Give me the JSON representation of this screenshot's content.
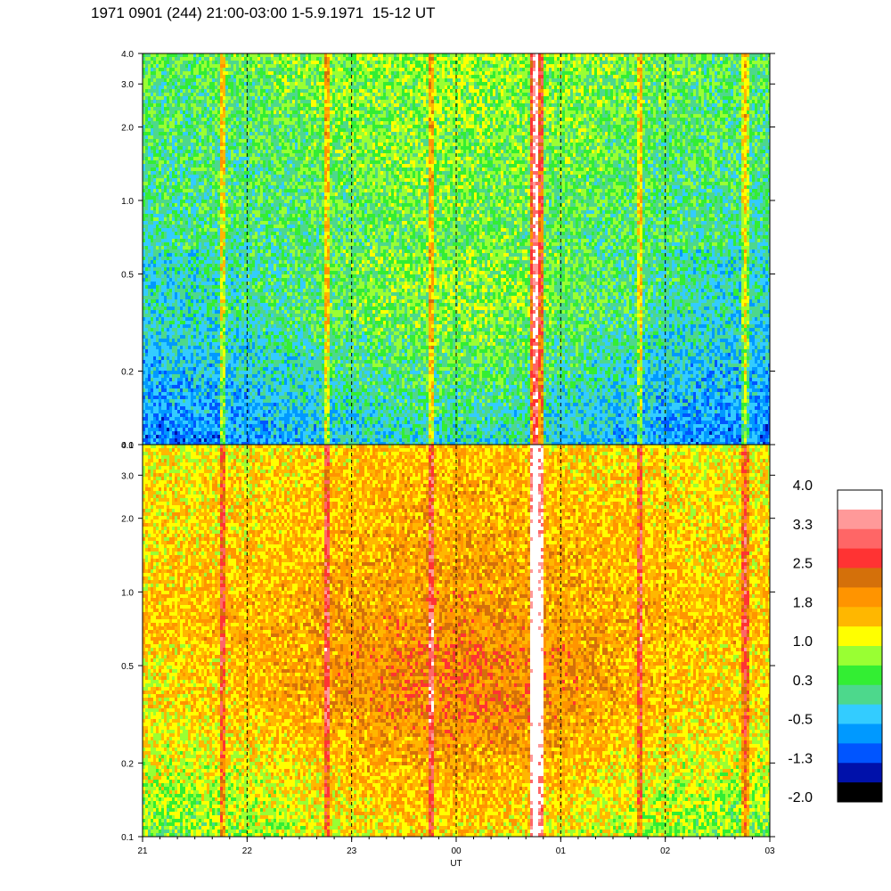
{
  "title": "1971 0901 (244) 21:00-03:00 1-5.9.1971  15-12 UT",
  "chart_data": {
    "type": "heatmap",
    "title": "1971 0901 (244) 21:00-03:00 1-5.9.1971  15-12 UT",
    "xlabel": "UT",
    "x_ticks": [
      "21",
      "22",
      "23",
      "00",
      "01",
      "02",
      "03"
    ],
    "x_range_hours": [
      21,
      27
    ],
    "dashed_vertical_lines_at": [
      "22",
      "23",
      "00",
      "01",
      "02"
    ],
    "panels": [
      {
        "name": "upper",
        "y_scale": "log",
        "ylim": [
          0.1,
          4.0
        ],
        "y_ticks": [
          "0.1",
          "0.2",
          "0.5",
          "1.0",
          "2.0",
          "3.0",
          "4.0"
        ],
        "dominant_levels": {
          "low_frequencies": -0.5,
          "mid_frequencies": 0.3,
          "high_frequencies": 0.6
        },
        "burst_times_hours": [
          21.75,
          22.75,
          23.75,
          24.75,
          25.75,
          26.75
        ],
        "strong_burst_time_hours": 24.75
      },
      {
        "name": "lower",
        "y_scale": "log",
        "ylim": [
          0.1,
          4.0
        ],
        "y_ticks": [
          "0.1",
          "0.2",
          "0.5",
          "1.0",
          "2.0",
          "3.0",
          "4.0"
        ],
        "dominant_levels": {
          "low_frequencies": 1.0,
          "mid_frequencies": 1.8,
          "high_frequencies": 1.4
        },
        "burst_times_hours": [
          21.75,
          22.75,
          23.75,
          24.75,
          25.75,
          26.75
        ],
        "strong_burst_time_hours": 24.75
      }
    ],
    "colorbar": {
      "labels": [
        "4.0",
        "3.3",
        "2.5",
        "1.8",
        "1.0",
        "0.3",
        "-0.5",
        "-1.3",
        "-2.0"
      ],
      "levels_top_to_bottom": [
        4.0,
        3.6,
        3.3,
        2.9,
        2.5,
        2.2,
        1.8,
        1.4,
        1.0,
        0.6,
        0.3,
        -0.1,
        -0.5,
        -0.9,
        -1.3,
        -1.6,
        -2.0
      ],
      "colors_top_to_bottom": [
        "#ffffff",
        "#ff9999",
        "#ff6666",
        "#ff3333",
        "#d4700a",
        "#ff9400",
        "#ffb700",
        "#ffff00",
        "#99ff33",
        "#33ee33",
        "#4dd88c",
        "#33ccff",
        "#0099ff",
        "#0055ff",
        "#0011aa",
        "#000000"
      ]
    }
  }
}
